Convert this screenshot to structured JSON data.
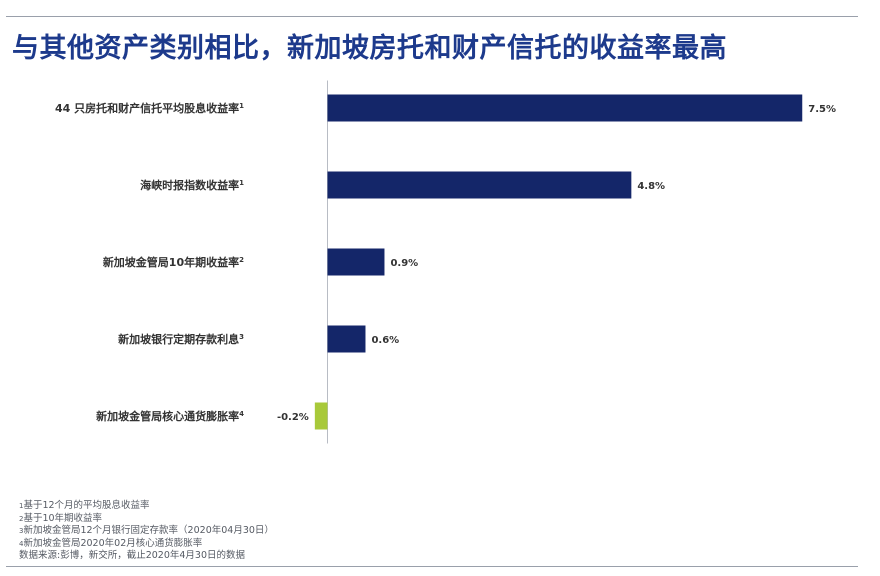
{
  "title": "与其他资产类别相比，新加坡房托和财产信托的收益率最高",
  "chart_data": {
    "type": "bar",
    "orientation": "horizontal",
    "categories": [
      {
        "label": "44 只房托和财产信托平均股息收益率",
        "note": "1"
      },
      {
        "label": "海峡时报指数收益率",
        "note": "1"
      },
      {
        "label": "新加坡金管局10年期收益率",
        "note": "2"
      },
      {
        "label": "新加坡银行定期存款利息",
        "note": "3"
      },
      {
        "label": "新加坡金管局核心通货膨胀率",
        "note": "4"
      }
    ],
    "values": [
      7.5,
      4.8,
      0.9,
      0.6,
      -0.2
    ],
    "value_labels": [
      "7.5%",
      "4.8%",
      "0.9%",
      "0.6%",
      "-0.2%"
    ],
    "xlim": [
      -0.2,
      7.5
    ],
    "colors": {
      "positive": "#142669",
      "negative": "#a8c93a",
      "axis": "#b8bcc4"
    },
    "grid": false,
    "legend": "none"
  },
  "footnotes": [
    {
      "num": "1",
      "text": "基于12个月的平均股息收益率"
    },
    {
      "num": "2",
      "text": "基于10年期收益率"
    },
    {
      "num": "3",
      "text": "新加坡金管局12个月银行固定存款率（2020年04月30日）"
    },
    {
      "num": "4",
      "text": "新加坡金管局2020年02月核心通货膨胀率"
    }
  ],
  "source": "数据来源:彭博，新交所，截止2020年4月30日的数据"
}
